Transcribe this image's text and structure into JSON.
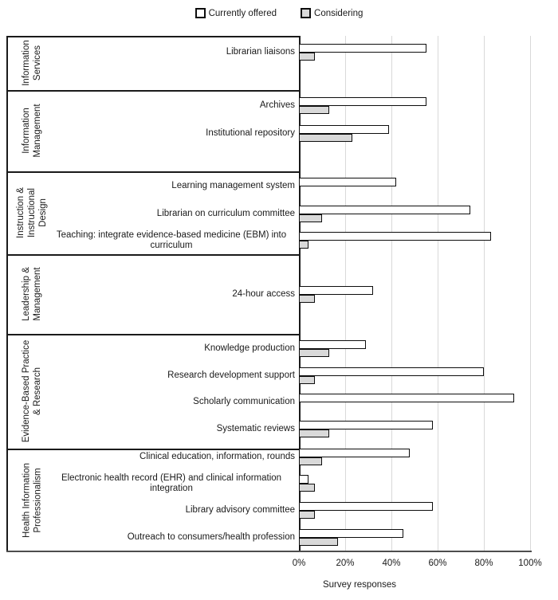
{
  "legend": {
    "items": [
      {
        "label": "Currently offered",
        "swatch_color": "#ffffff"
      },
      {
        "label": "Considering",
        "swatch_color": "#d9d9d9"
      }
    ]
  },
  "colors": {
    "offered_fill": "#ffffff",
    "considering_fill": "#d9d9d9",
    "bar_border": "#0d0d0d",
    "gridline": "#d9d9d9",
    "section_line": "#1a1a1a"
  },
  "chart_data": {
    "type": "bar",
    "orientation": "horizontal",
    "xlabel": "Survey responses",
    "xlim": [
      0,
      100
    ],
    "x_tick_labels": [
      "0%",
      "20%",
      "40%",
      "60%",
      "80%",
      "100%"
    ],
    "grid": "vertical",
    "legend_position": "top-center",
    "series_names": [
      "Currently offered",
      "Considering"
    ],
    "groups": [
      {
        "name": "Information Services",
        "label_lines": [
          "Information",
          "Services"
        ],
        "rows": [
          {
            "label": "Librarian liaisons",
            "currently_offered": 55,
            "considering": 7
          }
        ]
      },
      {
        "name": "Information Management",
        "label_lines": [
          "Information",
          "Management"
        ],
        "rows": [
          {
            "label": "Archives",
            "currently_offered": 55,
            "considering": 13
          },
          {
            "label": "Institutional repository",
            "currently_offered": 39,
            "considering": 23
          }
        ]
      },
      {
        "name": "Instruction & Instructional Design",
        "label_lines": [
          "Instruction &",
          "Instructional",
          "Design"
        ],
        "rows": [
          {
            "label": "Learning management system",
            "currently_offered": 42,
            "considering": 0
          },
          {
            "label": "Librarian on curriculum committee",
            "currently_offered": 74,
            "considering": 10
          },
          {
            "label": "Teaching: integrate evidence-based medicine (EBM) into curriculum",
            "currently_offered": 83,
            "considering": 4
          }
        ]
      },
      {
        "name": "Leadership & Management",
        "label_lines": [
          "Leadership &",
          "Management"
        ],
        "rows": [
          {
            "label": "24-hour access",
            "currently_offered": 32,
            "considering": 7
          }
        ]
      },
      {
        "name": "Evidence-Based Practice & Research",
        "label_lines": [
          "Evidence-Based Practice",
          "& Research"
        ],
        "rows": [
          {
            "label": "Knowledge production",
            "currently_offered": 29,
            "considering": 13
          },
          {
            "label": "Research development support",
            "currently_offered": 80,
            "considering": 7
          },
          {
            "label": "Scholarly communication",
            "currently_offered": 93,
            "considering": 0
          },
          {
            "label": "Systematic reviews",
            "currently_offered": 58,
            "considering": 13
          }
        ]
      },
      {
        "name": "Health Information Professionalism",
        "label_lines": [
          "Health Information",
          "Professionalism"
        ],
        "rows": [
          {
            "label": "Clinical education, information, rounds",
            "currently_offered": 48,
            "considering": 10
          },
          {
            "label": "Electronic health record (EHR) and clinical information integration",
            "currently_offered": 4,
            "considering": 7
          },
          {
            "label": "Library advisory committee",
            "currently_offered": 58,
            "considering": 7
          },
          {
            "label": "Outreach to consumers/health profession",
            "currently_offered": 45,
            "considering": 17
          }
        ]
      }
    ]
  }
}
